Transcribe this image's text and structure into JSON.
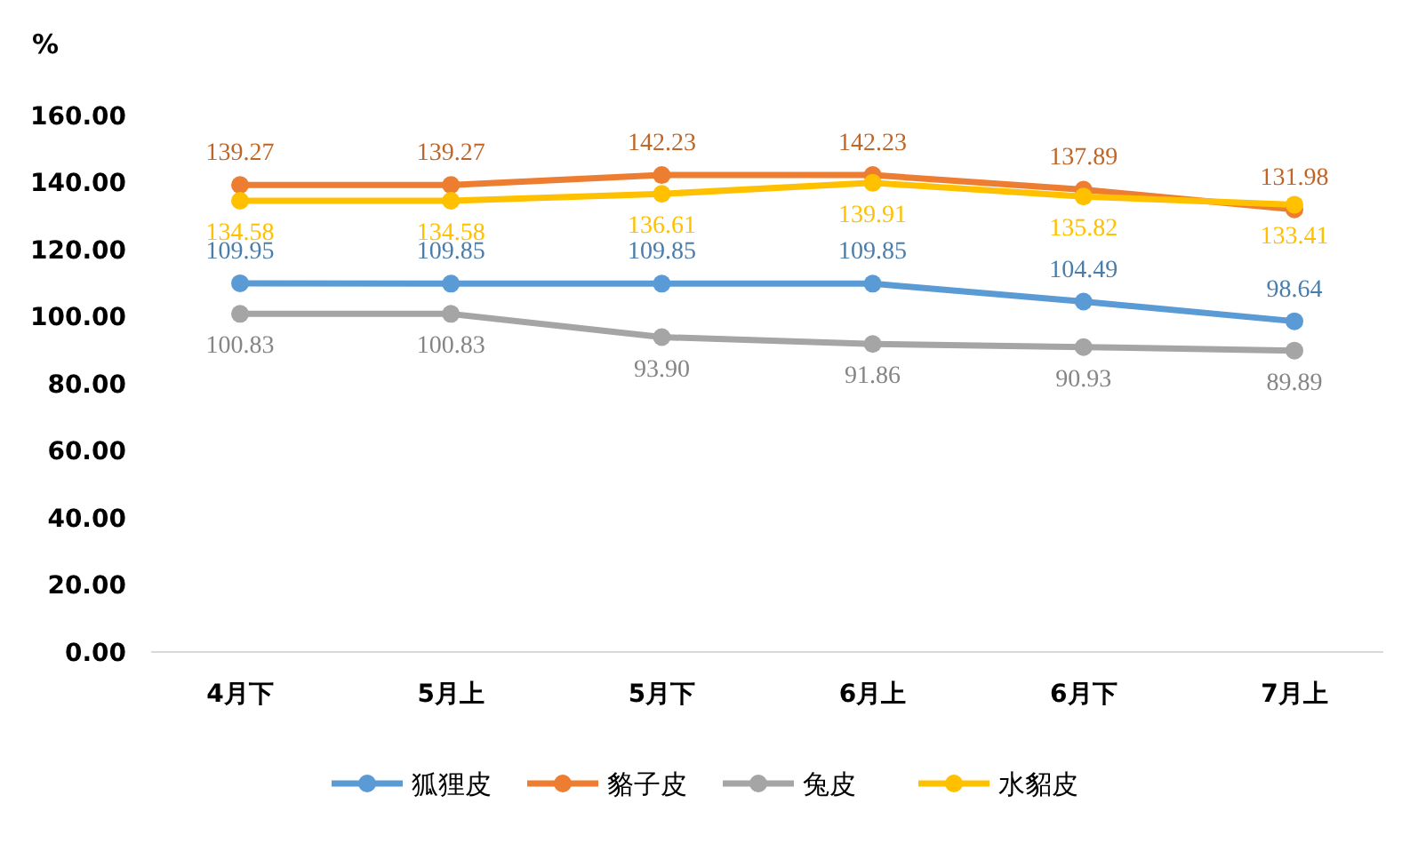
{
  "chart_data": {
    "type": "line",
    "ylabel": "%",
    "categories": [
      "4月下",
      "5月上",
      "5月下",
      "6月上",
      "6月下",
      "7月上"
    ],
    "ylim": [
      0,
      160
    ],
    "yticks": [
      {
        "value": 0,
        "label": "0.00"
      },
      {
        "value": 20,
        "label": "20.00"
      },
      {
        "value": 40,
        "label": "40.00"
      },
      {
        "value": 60,
        "label": "60.00"
      },
      {
        "value": 80,
        "label": "80.00"
      },
      {
        "value": 100,
        "label": "100.00"
      },
      {
        "value": 120,
        "label": "120.00"
      },
      {
        "value": 140,
        "label": "140.00"
      },
      {
        "value": 160,
        "label": "160.00"
      }
    ],
    "grid": false,
    "legend": "bottom",
    "marker": "circle",
    "line_style": "solid",
    "series": [
      {
        "name": "狐狸皮",
        "color": "#5b9bd5",
        "values": [
          109.95,
          109.85,
          109.85,
          109.85,
          104.49,
          98.64
        ],
        "value_labels": [
          "109.95",
          "109.85",
          "109.85",
          "109.85",
          "104.49",
          "98.64"
        ]
      },
      {
        "name": "貉子皮",
        "color": "#ed7d31",
        "values": [
          139.27,
          139.27,
          142.23,
          142.23,
          137.89,
          131.98
        ],
        "value_labels": [
          "139.27",
          "139.27",
          "142.23",
          "142.23",
          "137.89",
          "131.98"
        ]
      },
      {
        "name": "兔皮",
        "color": "#a5a5a5",
        "values": [
          100.83,
          100.83,
          93.9,
          91.86,
          90.93,
          89.89
        ],
        "value_labels": [
          "100.83",
          "100.83",
          "93.90",
          "91.86",
          "90.93",
          "89.89"
        ]
      },
      {
        "name": "水貂皮",
        "color": "#ffc000",
        "values": [
          134.58,
          134.58,
          136.61,
          139.91,
          135.82,
          133.41
        ],
        "value_labels": [
          "134.58",
          "134.58",
          "136.61",
          "139.91",
          "135.82",
          "133.41"
        ]
      }
    ]
  }
}
